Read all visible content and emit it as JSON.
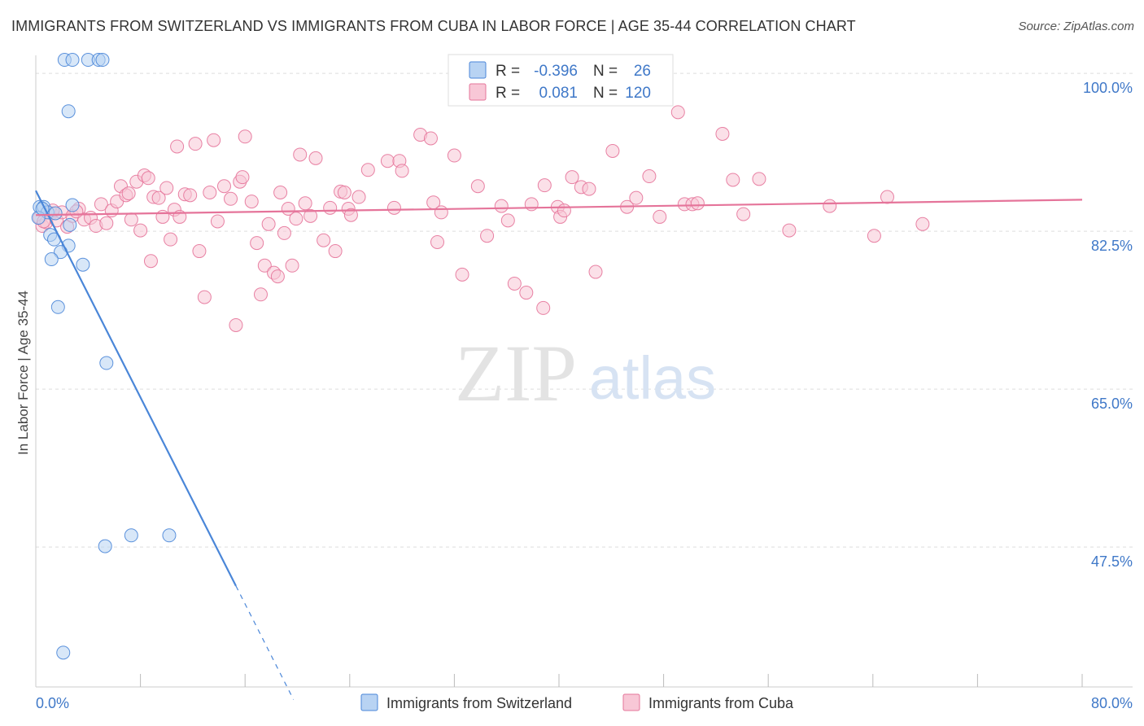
{
  "chart_data": {
    "type": "scatter",
    "title": "IMMIGRANTS FROM SWITZERLAND VS IMMIGRANTS FROM CUBA IN LABOR FORCE | AGE 35-44 CORRELATION CHART",
    "source": "Source: ZipAtlas.com",
    "xlabel": "",
    "ylabel": "In Labor Force | Age 35-44",
    "xlim": [
      0,
      80
    ],
    "ylim": [
      32,
      102
    ],
    "x_tick_labels": {
      "min": "0.0%",
      "max": "80.0%"
    },
    "y_ticks": [
      {
        "value": 100.0,
        "label": "100.0%"
      },
      {
        "value": 82.5,
        "label": "82.5%"
      },
      {
        "value": 65.0,
        "label": "65.0%"
      },
      {
        "value": 47.5,
        "label": "47.5%"
      }
    ],
    "watermark": {
      "zip": "ZIP",
      "atlas": "atlas"
    },
    "legend_stats": [
      {
        "r_label": "R =",
        "r_value": "-0.396",
        "n_label": "N =",
        "n_value": "26"
      },
      {
        "r_label": "R =",
        "r_value": "0.081",
        "n_label": "N =",
        "n_value": "120"
      }
    ],
    "series": [
      {
        "name": "Immigrants from Switzerland",
        "color": "#4a86d8",
        "fill": "#b8d3f3",
        "trend": {
          "x0": 0.0,
          "y0": 87.0,
          "x1": 15.3,
          "y1": 43.2,
          "dash_to_x": 19.7
        },
        "points": [
          [
            2.2,
            101.5
          ],
          [
            2.8,
            101.5
          ],
          [
            4.0,
            101.5
          ],
          [
            4.8,
            101.5
          ],
          [
            5.1,
            101.5
          ],
          [
            2.5,
            95.8
          ],
          [
            0.3,
            85.2
          ],
          [
            0.6,
            85.2
          ],
          [
            0.9,
            84.6
          ],
          [
            1.5,
            84.5
          ],
          [
            2.8,
            85.4
          ],
          [
            0.2,
            84.0
          ],
          [
            1.1,
            82.1
          ],
          [
            1.4,
            81.6
          ],
          [
            2.5,
            80.9
          ],
          [
            1.9,
            80.2
          ],
          [
            1.2,
            79.4
          ],
          [
            3.6,
            78.8
          ],
          [
            1.7,
            74.1
          ],
          [
            5.4,
            67.9
          ],
          [
            7.3,
            48.8
          ],
          [
            10.2,
            48.8
          ],
          [
            5.3,
            47.6
          ],
          [
            2.1,
            35.8
          ],
          [
            0.5,
            85.0
          ],
          [
            2.6,
            83.2
          ]
        ]
      },
      {
        "name": "Immigrants from Cuba",
        "color": "#e5749a",
        "fill": "#f8c7d6",
        "trend": {
          "x0": 0.0,
          "y0": 84.3,
          "x1": 80.0,
          "y1": 86.0
        },
        "points": [
          [
            0.3,
            84.0
          ],
          [
            0.5,
            83.1
          ],
          [
            0.8,
            83.5
          ],
          [
            1.2,
            84.5
          ],
          [
            1.6,
            83.7
          ],
          [
            2.0,
            84.6
          ],
          [
            2.4,
            83.0
          ],
          [
            2.8,
            84.2
          ],
          [
            3.3,
            85.0
          ],
          [
            3.7,
            83.8
          ],
          [
            4.2,
            84.0
          ],
          [
            4.6,
            83.1
          ],
          [
            5.0,
            85.5
          ],
          [
            5.4,
            83.4
          ],
          [
            5.8,
            84.8
          ],
          [
            6.2,
            85.8
          ],
          [
            6.5,
            87.5
          ],
          [
            6.9,
            86.5
          ],
          [
            7.3,
            83.8
          ],
          [
            7.7,
            88.0
          ],
          [
            8.0,
            82.6
          ],
          [
            8.3,
            88.7
          ],
          [
            8.6,
            88.4
          ],
          [
            8.8,
            79.2
          ],
          [
            9.0,
            86.3
          ],
          [
            9.4,
            86.2
          ],
          [
            9.7,
            84.1
          ],
          [
            10.0,
            87.3
          ],
          [
            10.3,
            81.6
          ],
          [
            10.6,
            84.9
          ],
          [
            10.8,
            91.9
          ],
          [
            11.0,
            84.1
          ],
          [
            11.4,
            86.6
          ],
          [
            11.8,
            86.5
          ],
          [
            12.2,
            92.2
          ],
          [
            12.5,
            80.3
          ],
          [
            12.9,
            75.2
          ],
          [
            13.3,
            86.8
          ],
          [
            13.6,
            92.6
          ],
          [
            13.9,
            83.6
          ],
          [
            14.4,
            87.5
          ],
          [
            14.9,
            86.1
          ],
          [
            15.3,
            72.1
          ],
          [
            15.6,
            88.0
          ],
          [
            15.8,
            88.5
          ],
          [
            16.0,
            93.0
          ],
          [
            16.5,
            85.8
          ],
          [
            16.9,
            81.2
          ],
          [
            17.2,
            75.5
          ],
          [
            17.5,
            78.7
          ],
          [
            17.8,
            83.3
          ],
          [
            18.2,
            77.9
          ],
          [
            18.5,
            77.5
          ],
          [
            18.7,
            86.8
          ],
          [
            19.0,
            82.3
          ],
          [
            19.3,
            85.0
          ],
          [
            19.6,
            78.7
          ],
          [
            19.9,
            83.9
          ],
          [
            20.2,
            91.0
          ],
          [
            20.6,
            85.6
          ],
          [
            21.0,
            84.2
          ],
          [
            21.4,
            90.6
          ],
          [
            22.0,
            81.5
          ],
          [
            22.5,
            85.1
          ],
          [
            22.9,
            80.3
          ],
          [
            23.3,
            86.9
          ],
          [
            23.6,
            86.8
          ],
          [
            23.9,
            85.0
          ],
          [
            24.1,
            84.3
          ],
          [
            24.7,
            86.3
          ],
          [
            25.4,
            89.3
          ],
          [
            26.9,
            90.3
          ],
          [
            27.4,
            85.1
          ],
          [
            27.8,
            90.3
          ],
          [
            28.0,
            89.2
          ],
          [
            29.4,
            93.2
          ],
          [
            30.2,
            92.8
          ],
          [
            30.4,
            85.7
          ],
          [
            30.7,
            81.3
          ],
          [
            31.0,
            84.6
          ],
          [
            32.0,
            90.9
          ],
          [
            32.6,
            77.7
          ],
          [
            33.8,
            87.5
          ],
          [
            34.5,
            82.0
          ],
          [
            35.6,
            85.3
          ],
          [
            36.1,
            83.7
          ],
          [
            36.6,
            76.7
          ],
          [
            37.5,
            75.7
          ],
          [
            37.9,
            85.5
          ],
          [
            38.8,
            74.0
          ],
          [
            38.9,
            87.6
          ],
          [
            39.9,
            85.2
          ],
          [
            40.1,
            84.1
          ],
          [
            40.4,
            84.8
          ],
          [
            41.0,
            88.5
          ],
          [
            41.7,
            87.4
          ],
          [
            42.3,
            87.2
          ],
          [
            42.8,
            78.0
          ],
          [
            44.1,
            91.4
          ],
          [
            45.2,
            85.2
          ],
          [
            45.9,
            86.2
          ],
          [
            46.9,
            88.6
          ],
          [
            47.7,
            84.1
          ],
          [
            49.1,
            95.7
          ],
          [
            49.6,
            85.5
          ],
          [
            50.2,
            85.5
          ],
          [
            50.6,
            85.6
          ],
          [
            52.5,
            93.3
          ],
          [
            53.3,
            88.2
          ],
          [
            54.1,
            84.4
          ],
          [
            55.3,
            88.3
          ],
          [
            57.6,
            82.6
          ],
          [
            60.7,
            85.3
          ],
          [
            64.1,
            82.0
          ],
          [
            65.1,
            86.3
          ],
          [
            67.8,
            83.3
          ],
          [
            0.6,
            83.6
          ],
          [
            1.3,
            84.8
          ],
          [
            3.1,
            84.7
          ],
          [
            7.1,
            86.7
          ]
        ]
      }
    ]
  }
}
